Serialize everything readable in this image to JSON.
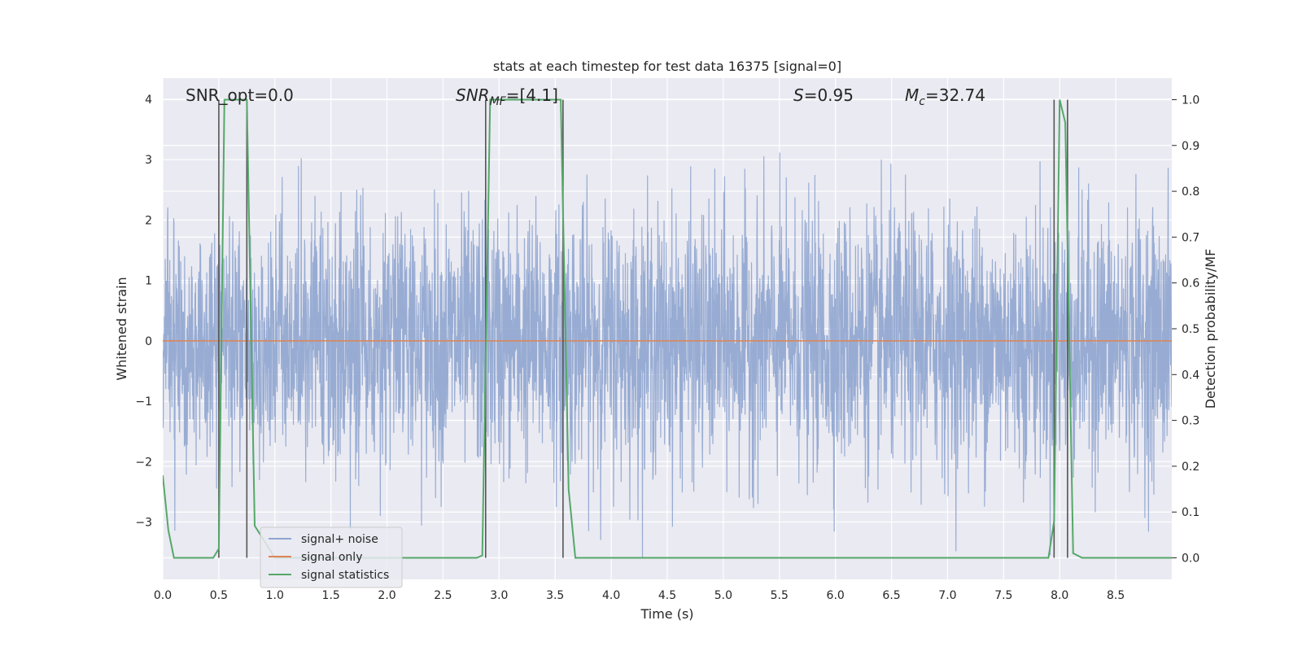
{
  "chart_data": {
    "type": "line",
    "title": "stats at each timestep for test data 16375 [signal=0]",
    "xlabel": "Time (s)",
    "ylabel_left": "Whitened strain",
    "ylabel_right": "Detection probability/MF",
    "xlim": [
      0,
      9
    ],
    "ylim_left": [
      -3.95,
      4.35
    ],
    "ylim_right": [
      -0.047,
      1.047
    ],
    "x_ticks": [
      "0.0",
      "0.5",
      "1.0",
      "1.5",
      "2.0",
      "2.5",
      "3.0",
      "3.5",
      "4.0",
      "4.5",
      "5.0",
      "5.5",
      "6.0",
      "6.5",
      "7.0",
      "7.5",
      "8.0",
      "8.5"
    ],
    "x_tick_values": [
      0,
      0.5,
      1,
      1.5,
      2,
      2.5,
      3,
      3.5,
      4,
      4.5,
      5,
      5.5,
      6,
      6.5,
      7,
      7.5,
      8,
      8.5
    ],
    "y_left_ticks": [
      "−3",
      "−2",
      "−1",
      "0",
      "1",
      "2",
      "3",
      "4"
    ],
    "y_left_tick_values": [
      -3,
      -2,
      -1,
      0,
      1,
      2,
      3,
      4
    ],
    "y_right_ticks": [
      "0.0",
      "0.1",
      "0.2",
      "0.3",
      "0.4",
      "0.5",
      "0.6",
      "0.7",
      "0.8",
      "0.9",
      "1.0"
    ],
    "y_right_tick_values": [
      0,
      0.1,
      0.2,
      0.3,
      0.4,
      0.5,
      0.6,
      0.7,
      0.8,
      0.9,
      1.0
    ],
    "grid": true,
    "legend_position": "lower-left",
    "annotations": {
      "snr_opt": "SNR_opt=0.0",
      "snr_mf_base": "SNR",
      "snr_mf_sub": "MF",
      "snr_mf_value": "=[4.1]",
      "s_sym": "S",
      "s_value": "=0.95",
      "mc_base": "M",
      "mc_sub": "c",
      "mc_value": "=32.74"
    },
    "series": [
      {
        "name": "signal+ noise",
        "color": "#8fa5cf",
        "description_values": "whitened noise, std ~1, range ~[-3.6, 3.8], 9 s sampled",
        "noise_std": 1.0
      },
      {
        "name": "signal only",
        "color": "#dd8452",
        "constant_value": 0
      },
      {
        "name": "signal statistics",
        "color": "#55a868",
        "x": [
          0.0,
          0.05,
          0.1,
          0.45,
          0.5,
          0.55,
          0.75,
          0.82,
          1.0,
          2.8,
          2.85,
          2.92,
          3.55,
          3.62,
          3.68,
          7.9,
          7.95,
          8.0,
          8.05,
          8.12,
          8.2,
          9.0
        ],
        "y": [
          0.18,
          0.06,
          0.0,
          0.0,
          0.02,
          1.0,
          1.0,
          0.07,
          0.0,
          0.0,
          0.005,
          1.0,
          1.0,
          0.15,
          0.0,
          0.0,
          0.08,
          1.0,
          0.95,
          0.01,
          0.0,
          0.0
        ]
      }
    ],
    "vlines": [
      0.5,
      0.75,
      2.88,
      3.57,
      7.95,
      8.07
    ],
    "vline_color": "#555555"
  }
}
